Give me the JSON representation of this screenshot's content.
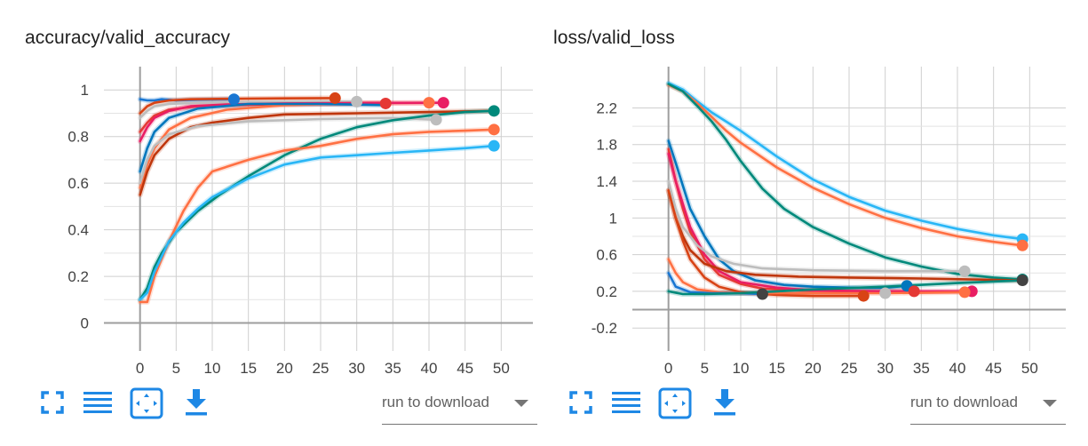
{
  "accent_color": "#1e88e5",
  "cards": [
    {
      "title": "accuracy/valid_accuracy",
      "download_select": {
        "value": "run to download"
      },
      "toolbar_icons": [
        "fullscreen-icon",
        "toggle-y-log-icon",
        "fit-domain-icon",
        "download-icon"
      ]
    },
    {
      "title": "loss/valid_loss",
      "download_select": {
        "value": "run to download"
      },
      "toolbar_icons": [
        "fullscreen-icon",
        "toggle-y-log-icon",
        "fit-domain-icon",
        "download-icon"
      ]
    }
  ],
  "chart_data": [
    {
      "type": "line",
      "title": "accuracy/valid_accuracy",
      "xlabel": "",
      "ylabel": "",
      "xlim": [
        -5,
        55
      ],
      "ylim": [
        -0.12,
        1.1
      ],
      "xticks": [
        0,
        5,
        10,
        15,
        20,
        25,
        30,
        35,
        40,
        45,
        50
      ],
      "yticks": [
        0,
        0.2,
        0.4,
        0.6,
        0.8,
        1
      ],
      "ytick_labels": [
        "0",
        "0.2",
        "0.4",
        "0.6",
        "0.8",
        "1"
      ],
      "grid": true,
      "series": [
        {
          "color": "#1976d2",
          "x": [
            0,
            1,
            2,
            3,
            5,
            8,
            13
          ],
          "y": [
            0.96,
            0.955,
            0.955,
            0.96,
            0.955,
            0.958,
            0.96
          ]
        },
        {
          "color": "#d84315",
          "x": [
            0,
            1,
            2,
            4,
            7,
            12,
            20,
            27
          ],
          "y": [
            0.9,
            0.93,
            0.945,
            0.955,
            0.96,
            0.962,
            0.964,
            0.965
          ]
        },
        {
          "color": "#bdbdbd",
          "x": [
            0,
            1,
            2,
            4,
            8,
            15,
            25,
            30
          ],
          "y": [
            0.88,
            0.91,
            0.93,
            0.94,
            0.945,
            0.948,
            0.95,
            0.95
          ]
        },
        {
          "color": "#e53935",
          "x": [
            0,
            1,
            2,
            4,
            8,
            15,
            25,
            34
          ],
          "y": [
            0.82,
            0.86,
            0.89,
            0.915,
            0.93,
            0.937,
            0.94,
            0.942
          ]
        },
        {
          "color": "#ff7043",
          "x": [
            0,
            1,
            2,
            4,
            7,
            12,
            20,
            30,
            40
          ],
          "y": [
            0.58,
            0.68,
            0.75,
            0.83,
            0.88,
            0.915,
            0.935,
            0.943,
            0.945
          ]
        },
        {
          "color": "#e91e63",
          "x": [
            0,
            1,
            2,
            4,
            7,
            12,
            20,
            30,
            42
          ],
          "y": [
            0.78,
            0.84,
            0.88,
            0.91,
            0.93,
            0.938,
            0.942,
            0.944,
            0.945
          ]
        },
        {
          "color": "#0277bd",
          "x": [
            0,
            1,
            2,
            4,
            8,
            15,
            25,
            34
          ],
          "y": [
            0.65,
            0.75,
            0.82,
            0.88,
            0.92,
            0.94,
            0.94,
            0.935
          ]
        },
        {
          "color": "#bf360c",
          "x": [
            0,
            1,
            2,
            4,
            7,
            10,
            15,
            20,
            30,
            40,
            49
          ],
          "y": [
            0.55,
            0.65,
            0.72,
            0.79,
            0.84,
            0.86,
            0.88,
            0.895,
            0.9,
            0.905,
            0.91
          ]
        },
        {
          "color": "#bdbdbd",
          "x": [
            0,
            1,
            2,
            4,
            8,
            15,
            25,
            35,
            41
          ],
          "y": [
            0.6,
            0.7,
            0.76,
            0.81,
            0.845,
            0.865,
            0.875,
            0.88,
            0.872
          ]
        },
        {
          "color": "#00897b",
          "x": [
            0,
            1,
            2,
            3,
            5,
            8,
            11,
            15,
            20,
            25,
            30,
            35,
            40,
            45,
            49
          ],
          "y": [
            0.1,
            0.15,
            0.24,
            0.3,
            0.39,
            0.48,
            0.55,
            0.63,
            0.72,
            0.79,
            0.84,
            0.87,
            0.89,
            0.905,
            0.91
          ]
        },
        {
          "color": "#ff7043",
          "x": [
            0,
            1,
            2,
            4,
            6,
            8,
            10,
            15,
            20,
            25,
            30,
            35,
            40,
            45,
            49
          ],
          "y": [
            0.09,
            0.09,
            0.2,
            0.35,
            0.48,
            0.58,
            0.65,
            0.7,
            0.74,
            0.76,
            0.79,
            0.81,
            0.82,
            0.825,
            0.83
          ]
        },
        {
          "color": "#29b6f6",
          "x": [
            0,
            1,
            2,
            4,
            6,
            8,
            10,
            15,
            20,
            25,
            30,
            35,
            40,
            45,
            49
          ],
          "y": [
            0.1,
            0.13,
            0.22,
            0.35,
            0.43,
            0.49,
            0.54,
            0.62,
            0.68,
            0.71,
            0.72,
            0.73,
            0.74,
            0.75,
            0.76
          ]
        }
      ],
      "end_markers": [
        {
          "x": 13,
          "y": 0.96,
          "color": "#1976d2"
        },
        {
          "x": 27,
          "y": 0.965,
          "color": "#d84315"
        },
        {
          "x": 30,
          "y": 0.95,
          "color": "#bdbdbd"
        },
        {
          "x": 34,
          "y": 0.942,
          "color": "#e53935"
        },
        {
          "x": 40,
          "y": 0.945,
          "color": "#ff7043"
        },
        {
          "x": 42,
          "y": 0.945,
          "color": "#e91e63"
        },
        {
          "x": 41,
          "y": 0.872,
          "color": "#bdbdbd"
        },
        {
          "x": 49,
          "y": 0.91,
          "color": "#00897b"
        },
        {
          "x": 49,
          "y": 0.83,
          "color": "#ff7043"
        },
        {
          "x": 49,
          "y": 0.76,
          "color": "#29b6f6"
        }
      ]
    },
    {
      "type": "line",
      "title": "loss/valid_loss",
      "xlabel": "",
      "ylabel": "",
      "xlim": [
        -5,
        55
      ],
      "ylim": [
        -0.45,
        2.65
      ],
      "xticks": [
        0,
        5,
        10,
        15,
        20,
        25,
        30,
        35,
        40,
        45,
        50
      ],
      "yticks": [
        -0.2,
        0.2,
        0.6,
        1.0,
        1.4,
        1.8,
        2.2
      ],
      "ytick_labels": [
        "-0.2",
        "0.2",
        "0.6",
        "1",
        "1.4",
        "1.8",
        "2.2"
      ],
      "grid": true,
      "series": [
        {
          "color": "#29b6f6",
          "x": [
            0,
            2,
            4,
            6,
            8,
            10,
            15,
            20,
            25,
            30,
            35,
            40,
            45,
            49
          ],
          "y": [
            2.47,
            2.4,
            2.27,
            2.15,
            2.05,
            1.95,
            1.67,
            1.42,
            1.23,
            1.08,
            0.97,
            0.88,
            0.81,
            0.77
          ]
        },
        {
          "color": "#ff7043",
          "x": [
            0,
            2,
            4,
            6,
            8,
            10,
            15,
            20,
            25,
            30,
            35,
            40,
            45,
            49
          ],
          "y": [
            2.45,
            2.38,
            2.25,
            2.1,
            1.95,
            1.82,
            1.55,
            1.33,
            1.15,
            1.0,
            0.89,
            0.8,
            0.74,
            0.7
          ]
        },
        {
          "color": "#00897b",
          "x": [
            0,
            2,
            4,
            6,
            8,
            10,
            13,
            16,
            20,
            25,
            30,
            35,
            40,
            45,
            49
          ],
          "y": [
            2.46,
            2.38,
            2.22,
            2.05,
            1.85,
            1.62,
            1.32,
            1.1,
            0.9,
            0.72,
            0.57,
            0.47,
            0.39,
            0.35,
            0.33
          ]
        },
        {
          "color": "#0277bd",
          "x": [
            0,
            1,
            2,
            3,
            5,
            7,
            9,
            12,
            16,
            20,
            25,
            30,
            33
          ],
          "y": [
            1.84,
            1.6,
            1.35,
            1.1,
            0.8,
            0.55,
            0.42,
            0.32,
            0.27,
            0.25,
            0.24,
            0.24,
            0.26
          ]
        },
        {
          "color": "#e53935",
          "x": [
            0,
            1,
            2,
            3,
            5,
            7,
            10,
            13,
            18,
            25,
            34
          ],
          "y": [
            1.75,
            1.4,
            1.1,
            0.85,
            0.55,
            0.38,
            0.28,
            0.23,
            0.21,
            0.2,
            0.2
          ]
        },
        {
          "color": "#e91e63",
          "x": [
            0,
            1,
            2,
            3,
            5,
            7,
            10,
            15,
            20,
            30,
            42
          ],
          "y": [
            1.7,
            1.4,
            1.15,
            0.9,
            0.6,
            0.42,
            0.3,
            0.24,
            0.21,
            0.2,
            0.2
          ]
        },
        {
          "color": "#bf360c",
          "x": [
            0,
            1,
            2,
            3,
            5,
            8,
            12,
            18,
            25,
            35,
            49
          ],
          "y": [
            1.3,
            1.0,
            0.8,
            0.65,
            0.5,
            0.42,
            0.38,
            0.36,
            0.35,
            0.34,
            0.32
          ]
        },
        {
          "color": "#bdbdbd",
          "x": [
            0,
            1,
            2,
            4,
            6,
            9,
            13,
            20,
            30,
            41
          ],
          "y": [
            1.4,
            1.1,
            0.9,
            0.7,
            0.58,
            0.5,
            0.45,
            0.43,
            0.42,
            0.42
          ]
        },
        {
          "color": "#d84315",
          "x": [
            0,
            1,
            2,
            3,
            5,
            7,
            10,
            15,
            20,
            27
          ],
          "y": [
            1.3,
            1.0,
            0.75,
            0.55,
            0.35,
            0.25,
            0.19,
            0.16,
            0.15,
            0.15
          ]
        },
        {
          "color": "#ff7043",
          "x": [
            0,
            1,
            2,
            4,
            7,
            10,
            15,
            20,
            30,
            41
          ],
          "y": [
            0.55,
            0.4,
            0.3,
            0.22,
            0.19,
            0.18,
            0.18,
            0.18,
            0.18,
            0.19
          ]
        },
        {
          "color": "#1976d2",
          "x": [
            0,
            1,
            3,
            6,
            10,
            13
          ],
          "y": [
            0.4,
            0.25,
            0.19,
            0.18,
            0.18,
            0.17
          ]
        },
        {
          "color": "#00897b",
          "x": [
            0,
            2,
            5,
            10,
            15,
            20,
            30,
            40,
            49
          ],
          "y": [
            0.2,
            0.17,
            0.17,
            0.18,
            0.2,
            0.22,
            0.25,
            0.29,
            0.32
          ]
        }
      ],
      "end_markers": [
        {
          "x": 49,
          "y": 0.77,
          "color": "#29b6f6"
        },
        {
          "x": 49,
          "y": 0.7,
          "color": "#ff7043"
        },
        {
          "x": 49,
          "y": 0.33,
          "color": "#00897b"
        },
        {
          "x": 49,
          "y": 0.32,
          "color": "#424242"
        },
        {
          "x": 41,
          "y": 0.42,
          "color": "#bdbdbd"
        },
        {
          "x": 33,
          "y": 0.26,
          "color": "#0277bd"
        },
        {
          "x": 34,
          "y": 0.2,
          "color": "#e53935"
        },
        {
          "x": 42,
          "y": 0.2,
          "color": "#e91e63"
        },
        {
          "x": 41,
          "y": 0.19,
          "color": "#ff7043"
        },
        {
          "x": 27,
          "y": 0.15,
          "color": "#d84315"
        },
        {
          "x": 30,
          "y": 0.18,
          "color": "#bdbdbd"
        },
        {
          "x": 13,
          "y": 0.17,
          "color": "#424242"
        }
      ]
    }
  ]
}
